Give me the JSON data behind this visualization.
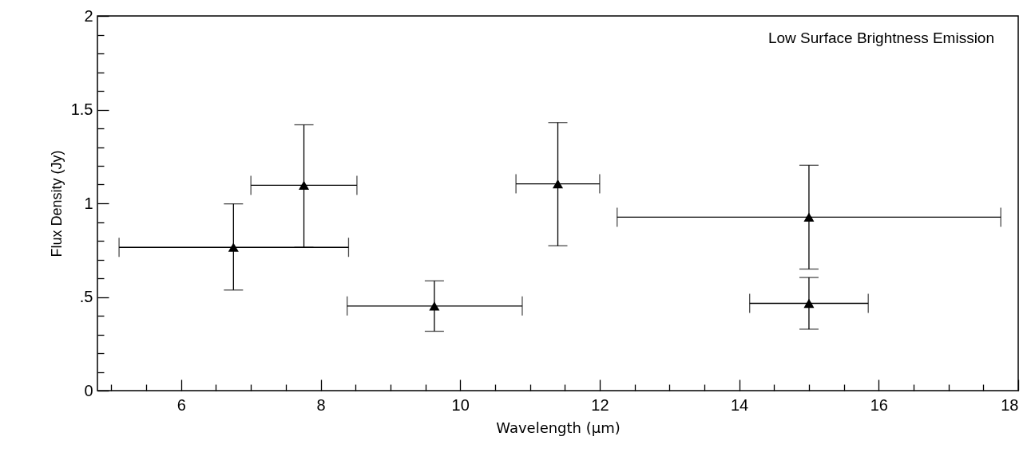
{
  "chart_data": {
    "type": "scatter",
    "xlabel": "Wavelength  (μm)",
    "ylabel": "Flux Density (Jy)",
    "annotations": [
      "Low Surface Brightness Emission"
    ],
    "x": [
      6.75,
      7.76,
      9.63,
      11.4,
      15.0,
      15.0
    ],
    "series": [
      {
        "color": "#000000",
        "values": [
          0.765,
          1.096,
          0.452,
          1.104,
          0.926,
          0.466
        ],
        "errors": [
          [
            0.537,
            0.997
          ],
          [
            0.765,
            1.419
          ],
          [
            0.317,
            0.586
          ],
          [
            0.773,
            1.431
          ],
          [
            0.649,
            1.203
          ],
          [
            0.328,
            0.604
          ]
        ],
        "xerrors": [
          [
            5.11,
            8.4
          ],
          [
            7.0,
            8.52
          ],
          [
            8.38,
            10.89
          ],
          [
            10.8,
            12.0
          ],
          [
            12.25,
            17.75
          ],
          [
            14.15,
            15.85
          ]
        ]
      }
    ],
    "marker": "triangle",
    "grid": false,
    "xlim": [
      4.8,
      18
    ],
    "ylim": [
      0,
      2
    ],
    "xticks": [
      {
        "value": 5,
        "label": null
      },
      {
        "value": 5.5,
        "label": null
      },
      6,
      {
        "value": 6.5,
        "label": null
      },
      {
        "value": 7,
        "label": null
      },
      {
        "value": 7.5,
        "label": null
      },
      8,
      {
        "value": 8.5,
        "label": null
      },
      {
        "value": 9,
        "label": null
      },
      {
        "value": 9.5,
        "label": null
      },
      10,
      {
        "value": 10.5,
        "label": null
      },
      {
        "value": 11,
        "label": null
      },
      {
        "value": 11.5,
        "label": null
      },
      12,
      {
        "value": 12.5,
        "label": null
      },
      {
        "value": 13,
        "label": null
      },
      {
        "value": 13.5,
        "label": null
      },
      14,
      {
        "value": 14.5,
        "label": null
      },
      {
        "value": 15,
        "label": null
      },
      {
        "value": 15.5,
        "label": null
      },
      16,
      {
        "value": 16.5,
        "label": null
      },
      {
        "value": 17,
        "label": null
      },
      {
        "value": 17.5,
        "label": null
      },
      18
    ],
    "yticks": [
      0,
      {
        "value": 0.1,
        "label": null
      },
      {
        "value": 0.2,
        "label": null
      },
      {
        "value": 0.3,
        "label": null
      },
      {
        "value": 0.4,
        "label": null
      },
      {
        "value": 0.5,
        "label": ".5"
      },
      {
        "value": 0.6,
        "label": null
      },
      {
        "value": 0.7,
        "label": null
      },
      {
        "value": 0.8,
        "label": null
      },
      {
        "value": 0.9,
        "label": null
      },
      1,
      {
        "value": 1.1,
        "label": null
      },
      {
        "value": 1.2,
        "label": null
      },
      {
        "value": 1.3,
        "label": null
      },
      {
        "value": 1.4,
        "label": null
      },
      1.5,
      {
        "value": 1.6,
        "label": null
      },
      {
        "value": 1.7,
        "label": null
      },
      {
        "value": 1.8,
        "label": null
      },
      {
        "value": 1.9,
        "label": null
      },
      2
    ]
  }
}
